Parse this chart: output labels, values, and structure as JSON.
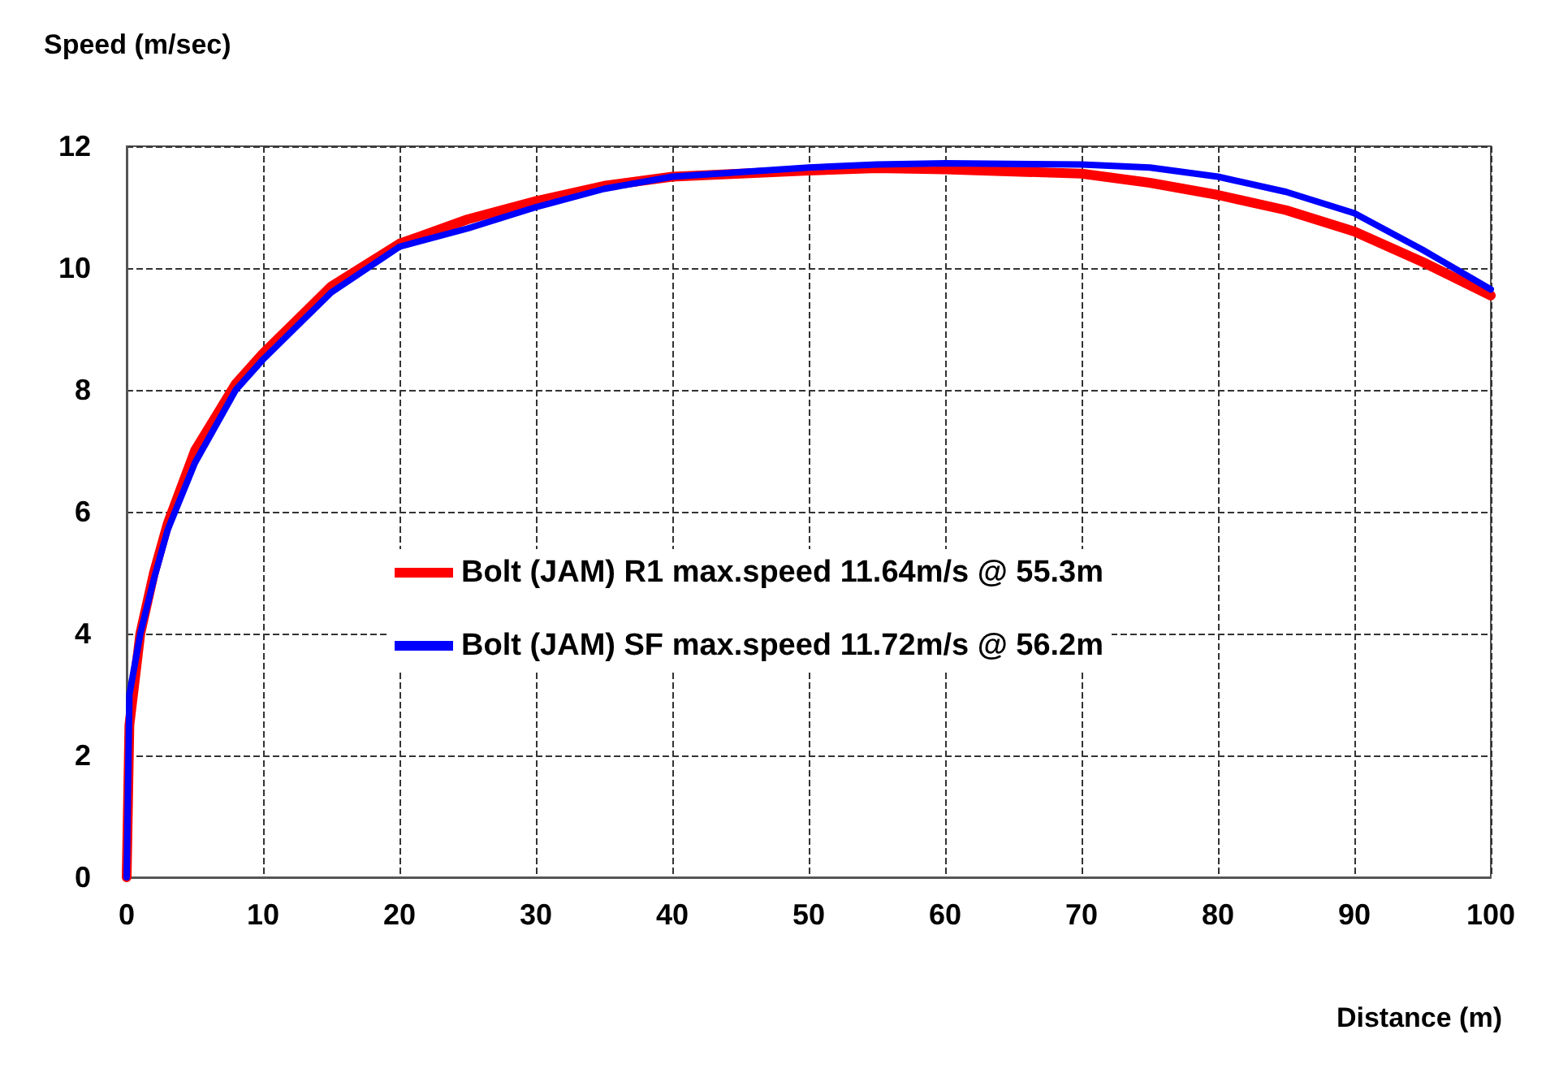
{
  "chart_data": {
    "type": "line",
    "ylabel": "Speed (m/sec)",
    "xlabel": "Distance (m)",
    "xlim": [
      0,
      100
    ],
    "xticks": [
      0,
      10,
      20,
      30,
      40,
      50,
      60,
      70,
      80,
      90,
      100
    ],
    "ylim": [
      0,
      12
    ],
    "yticks": [
      0,
      2,
      4,
      6,
      8,
      10,
      12
    ],
    "grid": true,
    "legend": "center",
    "marker": "none",
    "line_style": "solid",
    "x": [
      0,
      0.2,
      1,
      2,
      3,
      5,
      8,
      10,
      15,
      20,
      25,
      30,
      35,
      40,
      50,
      55,
      60,
      70,
      75,
      80,
      85,
      90,
      95,
      100
    ],
    "series": [
      {
        "name": "Bolt (JAM) R1 max.speed 11.64m/s @ 55.3m",
        "color": "#ff0000",
        "values": [
          0,
          2.5,
          4,
          5,
          5.8,
          7,
          8.1,
          8.6,
          9.7,
          10.4,
          10.8,
          11.1,
          11.35,
          11.5,
          11.6,
          11.64,
          11.62,
          11.55,
          11.4,
          11.2,
          10.95,
          10.6,
          10.1,
          9.55
        ]
      },
      {
        "name": "Bolt (JAM) SF max.speed 11.72m/s @ 56.2m",
        "color": "#0000ff",
        "values": [
          0,
          3,
          4,
          4.9,
          5.7,
          6.8,
          8,
          8.5,
          9.6,
          10.35,
          10.65,
          11,
          11.3,
          11.5,
          11.65,
          11.7,
          11.72,
          11.7,
          11.65,
          11.5,
          11.25,
          10.9,
          10.3,
          9.65
        ]
      }
    ]
  }
}
